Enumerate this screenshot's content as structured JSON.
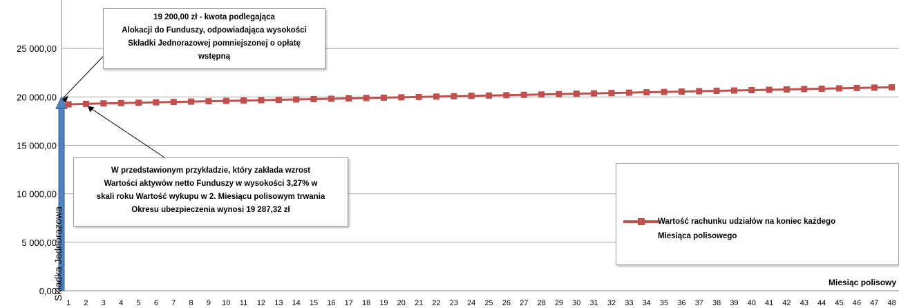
{
  "chart_data": {
    "type": "line",
    "xlabel": "Miesiąc polisowy",
    "ylabel": "Składka Jednorazowa",
    "ylim": [
      0,
      30000
    ],
    "ytick_labels": [
      "0,00",
      "5 000,00",
      "10 000,00",
      "15 000,00",
      "20 000,00",
      "25 000,00"
    ],
    "ytick_values": [
      0,
      5000,
      10000,
      15000,
      20000,
      25000
    ],
    "categories": [
      1,
      2,
      3,
      4,
      5,
      6,
      7,
      8,
      9,
      10,
      11,
      12,
      13,
      14,
      15,
      16,
      17,
      18,
      19,
      20,
      21,
      22,
      23,
      24,
      25,
      26,
      27,
      28,
      29,
      30,
      31,
      32,
      33,
      34,
      35,
      36,
      37,
      38,
      39,
      40,
      41,
      42,
      43,
      44,
      45,
      46,
      47,
      48
    ],
    "grid": true,
    "legend_position": "right",
    "colors": {
      "series": "#c0504d",
      "bar": "#4f81bd",
      "grid": "#a6a6a6"
    },
    "bar": {
      "name": "Składka Jednorazowa",
      "x": 0,
      "value": 20000
    },
    "series": [
      {
        "name": "Wartość rachunku udziałów na koniec każdego Miesiąca polisowego",
        "values": [
          19230,
          19287.32,
          19330,
          19367,
          19404,
          19441,
          19478,
          19515,
          19552,
          19589,
          19626,
          19663,
          19700,
          19737,
          19774,
          19811,
          19848,
          19885,
          19922,
          19959,
          19996,
          20033,
          20070,
          20107,
          20144,
          20181,
          20218,
          20255,
          20292,
          20329,
          20366,
          20403,
          20440,
          20477,
          20514,
          20551,
          20588,
          20625,
          20662,
          20699,
          20736,
          20773,
          20810,
          20847,
          20884,
          20921,
          20958,
          20995
        ]
      }
    ],
    "legend_lines": [
      "Wartość rachunku udziałów na koniec każdego",
      "Miesiąca polisowego"
    ],
    "annotations": [
      {
        "lines": [
          "19 200,00 zł - kwota podlegająca",
          "Alokacji do Funduszy, odpowiadająca wysokości",
          "Składki Jednorazowej pomniejszonej o opłatę",
          "wstępną"
        ]
      },
      {
        "lines": [
          "W przedstawionym przykładzie, który zakłada wzrost",
          "Wartości aktywów netto Funduszy w wysokości 3,27%  w",
          "skali roku Wartość wykupu w 2. Miesiącu polisowym trwania",
          "Okresu ubezpieczenia wynosi  19 287,32 zł"
        ]
      }
    ]
  }
}
